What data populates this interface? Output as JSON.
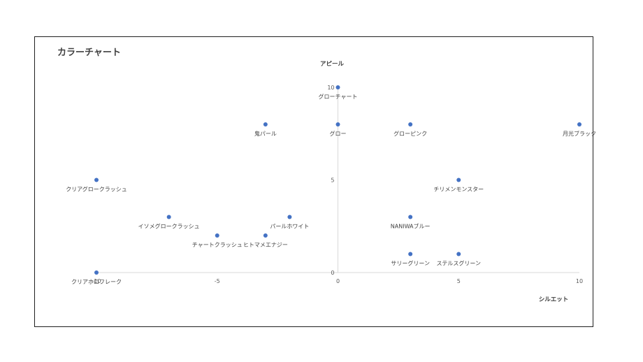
{
  "chart_data": {
    "type": "scatter",
    "title": "カラーチャート",
    "xlabel": "シルエット",
    "ylabel": "アピール",
    "xlim": [
      -10,
      10
    ],
    "ylim": [
      0,
      10
    ],
    "xticks": [
      "-10",
      "-5",
      "0",
      "5",
      "10"
    ],
    "yticks": [
      "0",
      "5",
      "10"
    ],
    "grid": false,
    "marker_color": "#4472c4",
    "points": [
      {
        "label": "グローチャート",
        "x": 0,
        "y": 10
      },
      {
        "label": "鬼パール",
        "x": -3,
        "y": 8
      },
      {
        "label": "グロー",
        "x": 0,
        "y": 8
      },
      {
        "label": "グローピンク",
        "x": 3,
        "y": 8
      },
      {
        "label": "月光ブラック",
        "x": 10,
        "y": 8
      },
      {
        "label": "クリアグロークラッシュ",
        "x": -10,
        "y": 5
      },
      {
        "label": "チリメンモンスター",
        "x": 5,
        "y": 5
      },
      {
        "label": "イソメグロークラッシュ",
        "x": -7,
        "y": 3
      },
      {
        "label": "パールホワイト",
        "x": -2,
        "y": 3
      },
      {
        "label": "NANIWAブルー",
        "x": 3,
        "y": 3
      },
      {
        "label": "チャートクラッシュ",
        "x": -5,
        "y": 2
      },
      {
        "label": "ヒトマメエナジー",
        "x": -3,
        "y": 2
      },
      {
        "label": "サリーグリーン",
        "x": 3,
        "y": 1
      },
      {
        "label": "ステルスグリーン",
        "x": 5,
        "y": 1
      },
      {
        "label": "クリアホロフレーク",
        "x": -10,
        "y": 0
      }
    ]
  }
}
